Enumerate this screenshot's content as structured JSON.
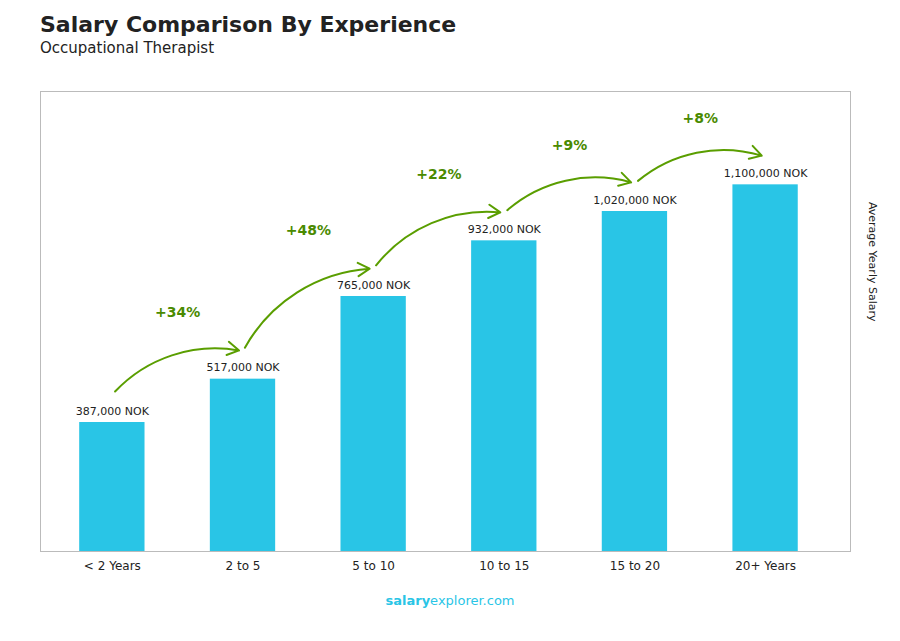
{
  "chart_data": {
    "type": "bar",
    "title": "Salary Comparison By Experience",
    "subtitle": "Occupational Therapist",
    "ylabel": "Average Yearly Salary",
    "categories": [
      "< 2 Years",
      "2 to 5",
      "5 to 10",
      "10 to 15",
      "15 to 20",
      "20+ Years"
    ],
    "values": [
      387000,
      517000,
      765000,
      932000,
      1020000,
      1100000
    ],
    "value_labels": [
      "387,000 NOK",
      "517,000 NOK",
      "765,000 NOK",
      "932,000 NOK",
      "1,020,000 NOK",
      "1,100,000 NOK"
    ],
    "data_labels": true,
    "change_labels": [
      null,
      "+34%",
      "+48%",
      "+22%",
      "+9%",
      "+8%"
    ],
    "color": "#29c5e6",
    "ylim": [
      0,
      1380000
    ],
    "yticks": [],
    "grid": false,
    "tick_labels": "x",
    "annotations": [
      "salary",
      "explorer.com"
    ]
  }
}
